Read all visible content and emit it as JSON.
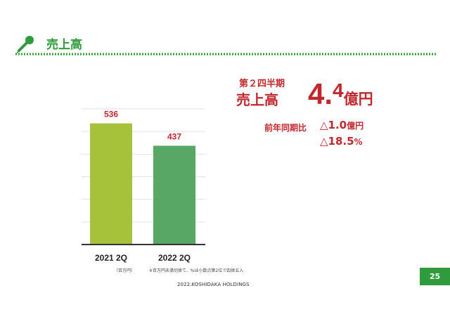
{
  "header": {
    "title": "売上高"
  },
  "kpi": {
    "period_label": "第２四半期",
    "metric_label": "売上高",
    "value_int": "4.",
    "value_dec": "4",
    "value_unit": "億円",
    "comparison_label": "前年同期比",
    "change_amount": "△1.0",
    "change_amount_unit": "億円",
    "change_rate": "△18.5",
    "change_rate_unit": "%"
  },
  "notes": {
    "unit": "（百万円）",
    "footnote": "※百万円未満切捨て、%は小数点第2位で四捨五入",
    "copyright": "2022.KOSHIDAKA HOLDINGS"
  },
  "page": {
    "number": "25"
  },
  "colors": {
    "brand_green": "#2f9b3d",
    "bar_2021": "#a5c23a",
    "bar_2022": "#58a764",
    "kpi_red": "#c0282e"
  },
  "chart_data": {
    "type": "bar",
    "categories": [
      "2021 2Q",
      "2022 2Q"
    ],
    "values": [
      536,
      437
    ],
    "value_labels": [
      "536",
      "437"
    ],
    "ylim": [
      0,
      600
    ],
    "grid": true,
    "unit": "百万円"
  }
}
